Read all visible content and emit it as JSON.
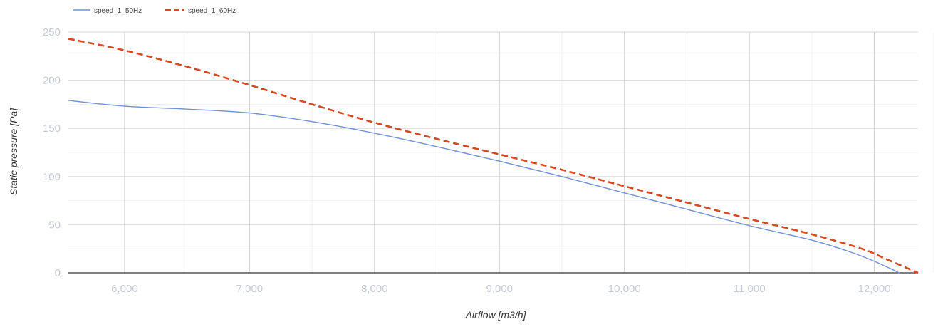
{
  "chart_data": {
    "type": "line",
    "title": "",
    "xlabel": "Airflow [m3/h]",
    "ylabel": "Static pressure [Pa]",
    "xlim": [
      5550,
      12350
    ],
    "ylim": [
      0,
      250
    ],
    "x_ticks": [
      6000,
      7000,
      8000,
      9000,
      10000,
      11000,
      12000
    ],
    "x_tick_labels": [
      "6,000",
      "7,000",
      "8,000",
      "9,000",
      "10,000",
      "11,000",
      "12,000"
    ],
    "y_ticks": [
      0,
      50,
      100,
      150,
      200,
      250
    ],
    "y_tick_labels": [
      "0",
      "50",
      "100",
      "150",
      "200",
      "250"
    ],
    "grid": true,
    "legend_position": "top-left",
    "series": [
      {
        "name": "speed_1_50Hz",
        "color": "#6f8fd6",
        "line_style": "solid",
        "x": [
          5550,
          6000,
          6500,
          7000,
          7500,
          8000,
          8500,
          9000,
          9500,
          10000,
          10500,
          11000,
          11500,
          11800,
          12000,
          12200
        ],
        "y": [
          179,
          173,
          170,
          166,
          157,
          145,
          131,
          116,
          100,
          83,
          66,
          49,
          34,
          22,
          12,
          0
        ]
      },
      {
        "name": "speed_1_60Hz",
        "color": "#d9471f",
        "line_style": "dashed",
        "x": [
          5550,
          6000,
          6500,
          7000,
          7500,
          8000,
          8500,
          9000,
          9500,
          10000,
          10500,
          11000,
          11500,
          11900,
          12100,
          12350
        ],
        "y": [
          243,
          231,
          214,
          195,
          175,
          156,
          139,
          123,
          107,
          90,
          73,
          56,
          40,
          25,
          14,
          0
        ]
      }
    ]
  }
}
